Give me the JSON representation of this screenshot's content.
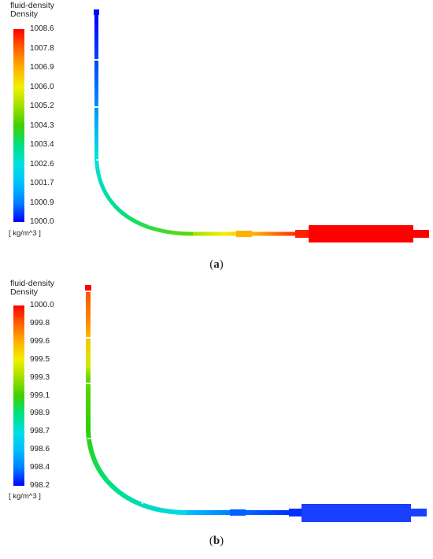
{
  "panels": [
    {
      "id": "a",
      "legend": {
        "title_line1": "fluid-density",
        "title_line2": "Density",
        "ticks": [
          "1008.6",
          "1007.8",
          "1006.9",
          "1006.0",
          "1005.2",
          "1004.3",
          "1003.4",
          "1002.6",
          "1001.7",
          "1000.9",
          "1000.0"
        ],
        "unit": "[ kg/m^3 ]"
      },
      "caption_open": "(",
      "caption_letter": "a",
      "caption_close": ")"
    },
    {
      "id": "b",
      "legend": {
        "title_line1": "fluid-density",
        "title_line2": "Density",
        "ticks": [
          "1000.0",
          "999.8",
          "999.6",
          "999.5",
          "999.3",
          "999.1",
          "998.9",
          "998.7",
          "998.6",
          "998.4",
          "998.2"
        ],
        "unit": "[ kg/m^3 ]"
      },
      "caption_open": "(",
      "caption_letter": "b",
      "caption_close": ")"
    }
  ],
  "colors": {
    "colormap": [
      "#0000ff",
      "#0080ff",
      "#00c0ff",
      "#00e0e0",
      "#00e080",
      "#40d000",
      "#a0e000",
      "#f0f000",
      "#ffb000",
      "#ff6000",
      "#ff0000"
    ]
  }
}
